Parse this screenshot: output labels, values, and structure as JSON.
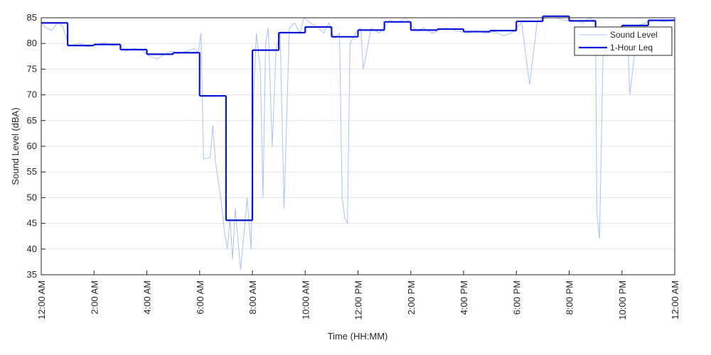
{
  "chart_data": {
    "type": "line",
    "xlabel": "Time (HH:MM)",
    "ylabel": "Sound Level (dBA)",
    "xlim": [
      0,
      24
    ],
    "ylim": [
      35,
      85
    ],
    "xticks": [
      {
        "value": 0,
        "label": "12:00 AM"
      },
      {
        "value": 2,
        "label": "2:00 AM"
      },
      {
        "value": 4,
        "label": "4:00 AM"
      },
      {
        "value": 6,
        "label": "6:00 AM"
      },
      {
        "value": 8,
        "label": "8:00 AM"
      },
      {
        "value": 10,
        "label": "10:00 AM"
      },
      {
        "value": 12,
        "label": "12:00 PM"
      },
      {
        "value": 14,
        "label": "2:00 PM"
      },
      {
        "value": 16,
        "label": "4:00 PM"
      },
      {
        "value": 18,
        "label": "6:00 PM"
      },
      {
        "value": 20,
        "label": "8:00 PM"
      },
      {
        "value": 22,
        "label": "10:00 PM"
      },
      {
        "value": 24,
        "label": "12:00 AM"
      }
    ],
    "yticks": [
      35,
      40,
      45,
      50,
      55,
      60,
      65,
      70,
      75,
      80,
      85
    ],
    "grid": true,
    "legend": "upper right",
    "series": [
      {
        "name": "Sound Level",
        "color": "#a9c1f3",
        "style": "line",
        "x": [
          0,
          0.2,
          0.4,
          0.6,
          0.8,
          1.05,
          1.25,
          1.5,
          1.75,
          1.95,
          2.1,
          2.4,
          2.7,
          2.95,
          3.2,
          3.5,
          3.8,
          4.1,
          4.4,
          4.7,
          4.95,
          5.2,
          5.5,
          5.8,
          5.95,
          6.05,
          6.15,
          6.4,
          6.5,
          6.6,
          6.8,
          6.95,
          7.05,
          7.15,
          7.25,
          7.35,
          7.45,
          7.55,
          7.7,
          7.8,
          7.95,
          8.05,
          8.15,
          8.3,
          8.4,
          8.5,
          8.6,
          8.75,
          8.9,
          9.05,
          9.2,
          9.4,
          9.6,
          9.8,
          9.95,
          10.2,
          10.5,
          10.7,
          10.9,
          11.1,
          11.3,
          11.4,
          11.5,
          11.6,
          11.7,
          11.9,
          12.1,
          12.2,
          12.5,
          12.8,
          13.2,
          13.5,
          13.8,
          14.2,
          14.5,
          14.8,
          15.3,
          15.7,
          16.2,
          16.5,
          16.8,
          17.2,
          17.5,
          17.8,
          18.2,
          18.5,
          18.8,
          19.2,
          19.5,
          19.8,
          20.2,
          20.5,
          20.8,
          21.0,
          21.05,
          21.15,
          21.3,
          21.6,
          22.2,
          22.3,
          22.6,
          23.2,
          23.6,
          24
        ],
        "values": [
          84,
          83,
          82.5,
          84,
          83.5,
          79.5,
          79.8,
          80,
          79.3,
          79.6,
          79.8,
          80.2,
          79.6,
          79.9,
          78.5,
          79,
          78.8,
          77.5,
          77,
          78,
          78.5,
          78,
          78.5,
          79,
          78.2,
          82,
          57.5,
          57.8,
          64,
          57,
          50,
          43,
          40,
          46,
          38,
          48,
          42,
          36,
          44,
          50,
          40,
          70,
          82,
          75,
          50,
          80,
          83,
          60,
          79,
          82,
          48,
          83,
          84,
          82,
          85,
          84,
          83,
          82,
          84,
          81,
          82,
          50,
          46,
          45,
          80,
          82,
          83,
          75,
          83,
          82,
          84.5,
          84,
          85,
          82.5,
          83,
          82,
          83,
          82.5,
          82,
          82.5,
          82,
          82.3,
          81.5,
          82,
          84,
          72,
          84.5,
          85,
          85,
          84.5,
          84.5,
          84,
          85,
          84,
          47,
          42,
          82,
          83,
          83,
          70,
          83.5,
          84.5,
          84.2,
          84.5
        ]
      },
      {
        "name": "1-Hour Leq",
        "color": "#0a14d8",
        "style": "step",
        "x": [
          0,
          1,
          2,
          3,
          4,
          5,
          6,
          7,
          8,
          9,
          10,
          11,
          12,
          13,
          14,
          15,
          16,
          17,
          18,
          19,
          20,
          21,
          22,
          23
        ],
        "values": [
          84,
          79.6,
          79.8,
          78.8,
          77.9,
          78.2,
          69.8,
          45.6,
          78.7,
          82.1,
          83.2,
          81.3,
          82.6,
          84.2,
          82.6,
          82.8,
          82.3,
          82.5,
          84.3,
          85.3,
          84.4,
          82.7,
          83.5,
          84.5
        ]
      }
    ]
  }
}
